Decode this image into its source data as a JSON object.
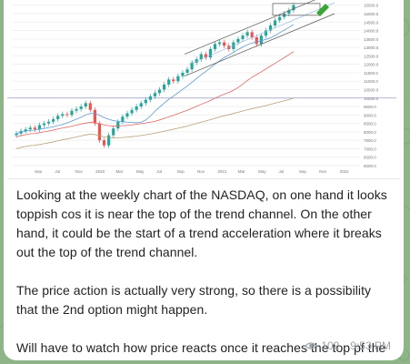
{
  "message": {
    "paragraphs": [
      "Looking at the weekly chart of the NASDAQ, on one hand it looks toppish cos it is near the top of the trend channel. On the other hand, it could be the start of a trend acceleration where it breaks out the top of the trend channel.",
      "The price action is actually very strong, so there is a possibility that the 2nd option might happen.",
      "Will have to watch how price reacts once it reaches the top pf the channel (very close now)."
    ],
    "views": "102",
    "time": "9:53 PM"
  },
  "icons": {
    "views": "eye-icon"
  },
  "colors": {
    "background": "#8fb487",
    "bubble": "#ffffff",
    "text": "#222222",
    "meta": "#9aa3a9",
    "candle_up": "#26a69a",
    "candle_down": "#ef5350"
  },
  "chart_data": {
    "type": "candlestick",
    "title": "",
    "x_tick_labels": [
      "Sep",
      "Jul",
      "Nov",
      "2020",
      "Mar",
      "May",
      "Jul",
      "Sep",
      "Nov",
      "2021",
      "Mar",
      "May",
      "Jul",
      "Sep",
      "Nov",
      "2022"
    ],
    "y_tick_labels": [
      "15500.0",
      "15000.0",
      "14500.0",
      "14000.0",
      "13500.0",
      "13000.0",
      "12500.0",
      "12000.0",
      "11500.0",
      "11000.0",
      "10500.0",
      "10000.0",
      "9500.0",
      "9000.0",
      "8500.0",
      "8000.0",
      "7500.0",
      "7000.0",
      "6500.0",
      "6000.0"
    ],
    "y_range": [
      6000,
      15700
    ],
    "highlight_level": 10000,
    "closes": [
      7900,
      8050,
      8150,
      8250,
      8150,
      8400,
      8500,
      8600,
      8750,
      8950,
      9050,
      9000,
      9250,
      9350,
      9500,
      9700,
      9300,
      8500,
      7500,
      7200,
      7800,
      8200,
      8600,
      8900,
      9100,
      9300,
      9500,
      9700,
      9900,
      10100,
      10300,
      10500,
      10800,
      11100,
      11000,
      11300,
      11500,
      11700,
      12100,
      12300,
      12600,
      12400,
      12900,
      13200,
      13300,
      13100,
      12900,
      13300,
      13500,
      13700,
      13900,
      13600,
      13200,
      13700,
      14000,
      14300,
      14600,
      14800,
      15000,
      15200,
      15500
    ]
  }
}
